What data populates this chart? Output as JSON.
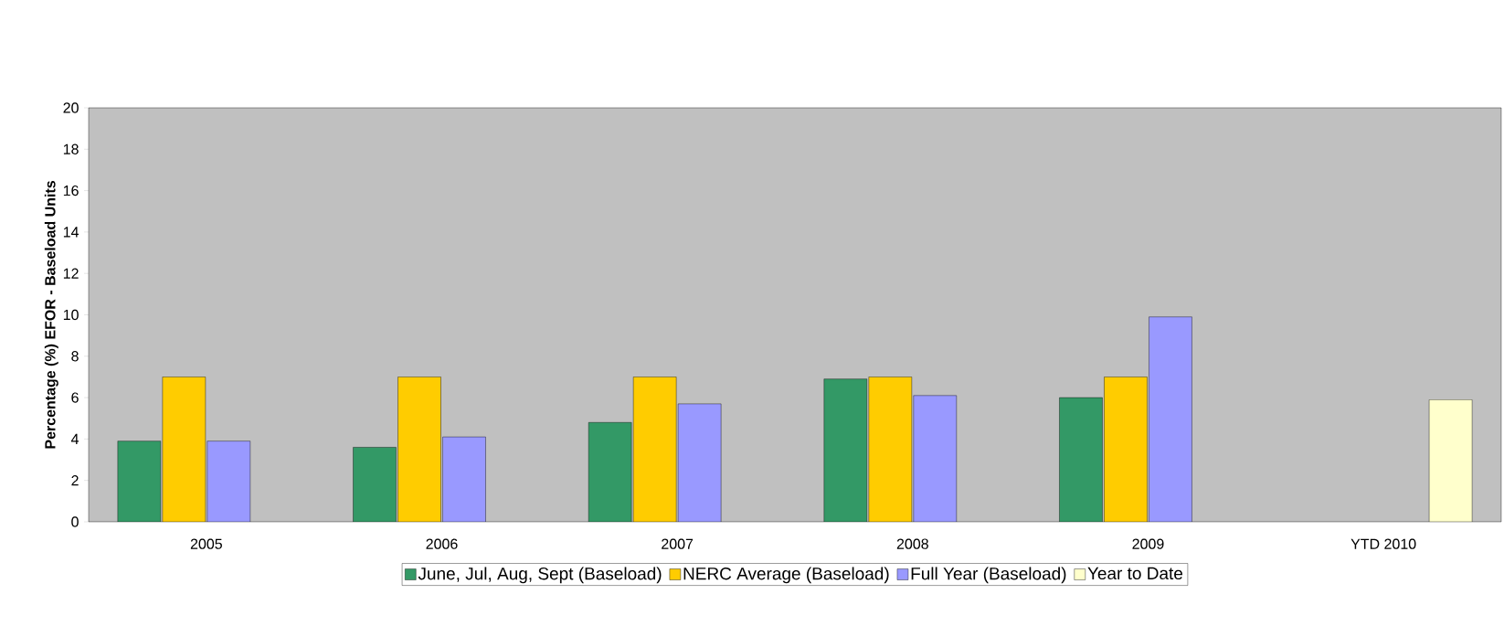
{
  "chart_data": {
    "type": "bar",
    "ylabel": "Percentage (%) EFOR - Baseload Units",
    "categories": [
      "2005",
      "2006",
      "2007",
      "2008",
      "2009",
      "YTD 2010"
    ],
    "series": [
      {
        "name": "June, Jul, Aug, Sept (Baseload)",
        "color": "#339966",
        "values": [
          3.9,
          3.6,
          4.8,
          6.9,
          6.0,
          null
        ]
      },
      {
        "name": "NERC Average (Baseload)",
        "color": "#ffcc00",
        "values": [
          7.0,
          7.0,
          7.0,
          7.0,
          7.0,
          null
        ]
      },
      {
        "name": "Full Year (Baseload)",
        "color": "#9999ff",
        "values": [
          3.9,
          4.1,
          5.7,
          6.1,
          9.9,
          null
        ]
      },
      {
        "name": "Year to Date",
        "color": "#ffffcc",
        "values": [
          null,
          null,
          null,
          null,
          null,
          5.9
        ]
      }
    ],
    "ylim": [
      0,
      20
    ],
    "yticks": [
      0,
      2,
      4,
      6,
      8,
      10,
      12,
      14,
      16,
      18,
      20
    ],
    "legend": "bottom"
  }
}
